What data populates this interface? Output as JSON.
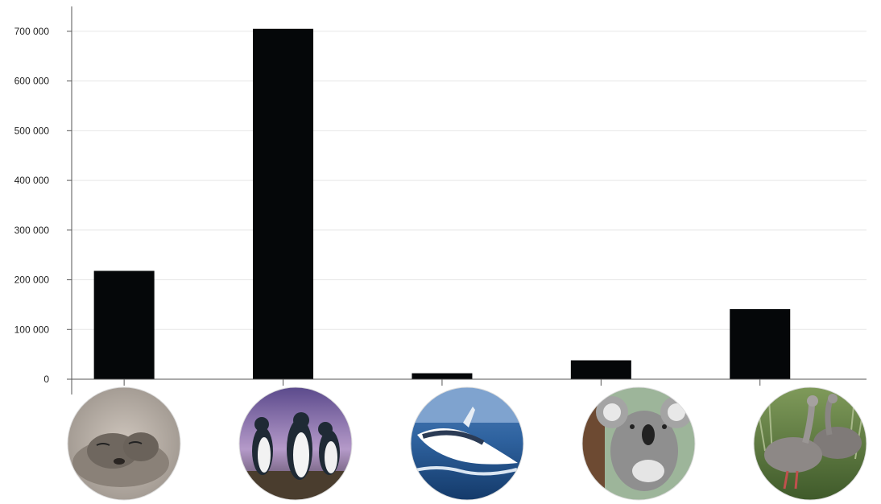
{
  "chart_data": {
    "type": "bar",
    "categories": [
      "fur-seal",
      "little-penguins",
      "humpback-whale",
      "koala",
      "cape-barren-goose"
    ],
    "category_pictures": [
      "fur-seal-photo",
      "penguin-photo",
      "whale-photo",
      "koala-photo",
      "goose-photo"
    ],
    "values": [
      218000,
      705000,
      12000,
      38000,
      141000
    ],
    "ylim": [
      0,
      750000
    ],
    "y_ticks": [
      0,
      100000,
      200000,
      300000,
      400000,
      500000,
      600000,
      700000
    ],
    "y_tick_labels": [
      "0",
      "100 000",
      "200 000",
      "300 000",
      "400 000",
      "500 000",
      "600 000",
      "700 000"
    ],
    "grid": true,
    "bar_color": "#050709",
    "grid_color": "#e6e6e6",
    "axis_color": "#555555"
  }
}
